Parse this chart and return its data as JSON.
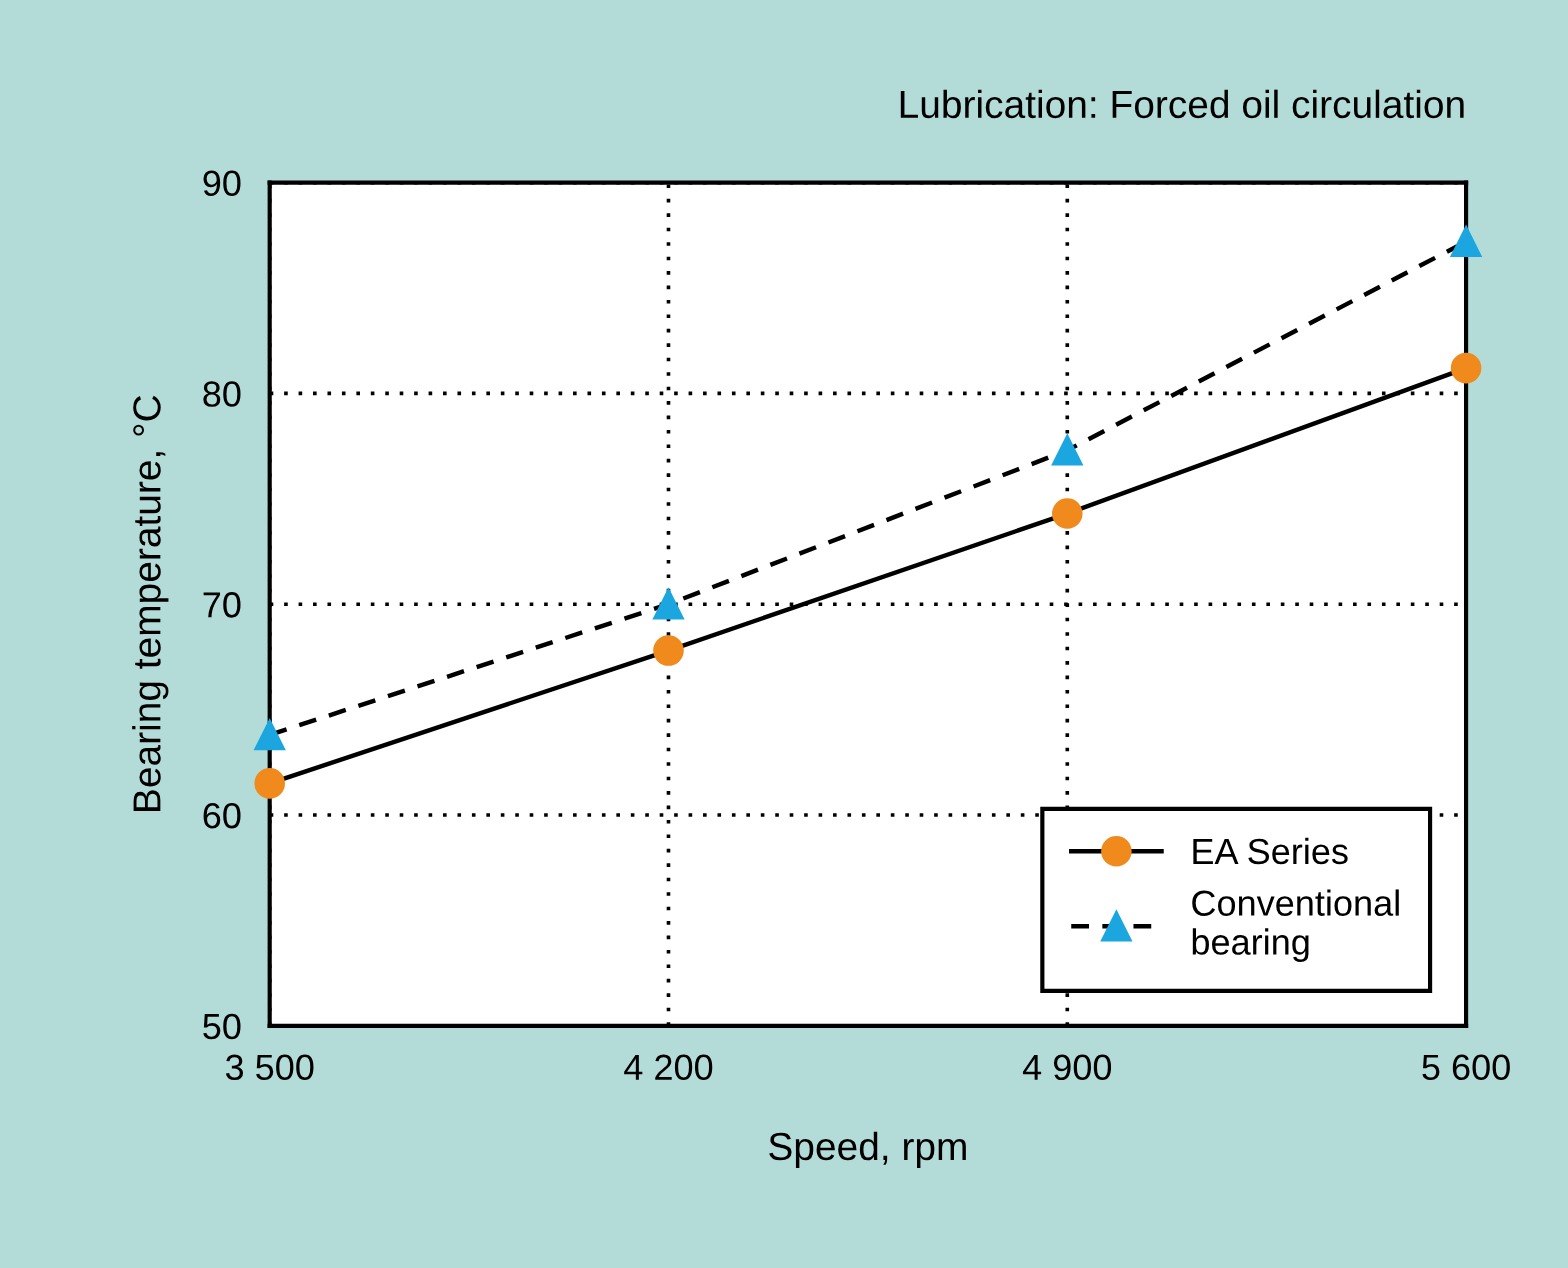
{
  "chart_data": {
    "type": "line",
    "xlabel": "Speed, rpm",
    "ylabel": "Bearing temperature, °C",
    "annotations": [
      "Lubrication: Forced oil circulation"
    ],
    "x": [
      3500,
      4200,
      4900,
      5600
    ],
    "series": [
      {
        "name": "EA Series",
        "color": "#f08a1c",
        "values": [
          61.5,
          67.8,
          74.3,
          81.2
        ],
        "marker": "circle",
        "line_style": "solid"
      },
      {
        "name": "Conventional\nbearing",
        "color": "#1ba6e0",
        "values": [
          63.8,
          70.0,
          77.3,
          87.2
        ],
        "marker": "triangle",
        "line_style": "dashed"
      }
    ],
    "xlim": [
      3500,
      5600
    ],
    "xticks": [
      {
        "value": 3500,
        "label": "3 500"
      },
      {
        "value": 4200,
        "label": "4 200"
      },
      {
        "value": 4900,
        "label": "4 900"
      },
      {
        "value": 5600,
        "label": "5 600"
      }
    ],
    "ylim": [
      50,
      90
    ],
    "yticks": [
      50,
      60,
      70,
      80,
      90
    ],
    "grid": true,
    "legend": "bottom right"
  }
}
